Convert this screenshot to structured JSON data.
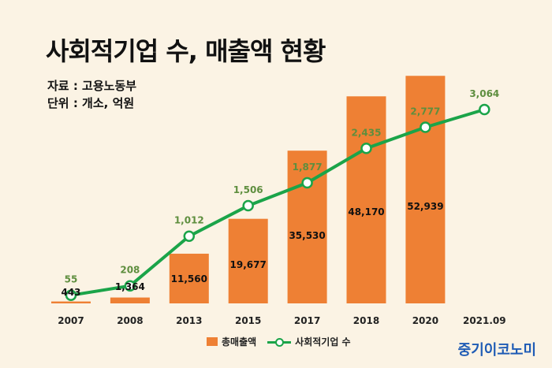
{
  "header": {
    "title": "사회적기업 수, 매출액 현황",
    "source": "자료 : 고용노동부",
    "unit": "단위 : 개소, 억원"
  },
  "brand": "중기이코노미",
  "colors": {
    "bar": "#EE8034",
    "line": "#1BA449",
    "count_label": "#5E8E3E",
    "background": "#FBF3E4"
  },
  "chart_data": {
    "type": "bar",
    "categories": [
      "2007",
      "2008",
      "2013",
      "2015",
      "2017",
      "2018",
      "2020",
      "2021.09"
    ],
    "series": [
      {
        "name": "총매출액",
        "type": "bar",
        "values": [
          443,
          1364,
          11560,
          19677,
          35530,
          48170,
          52939,
          null
        ],
        "labels": [
          "443",
          "1,364",
          "11,560",
          "19,677",
          "35,530",
          "48,170",
          "52,939",
          ""
        ]
      },
      {
        "name": "사회적기업 수",
        "type": "line",
        "values": [
          55,
          208,
          1012,
          1506,
          1877,
          2435,
          2777,
          3064
        ],
        "labels": [
          "55",
          "208",
          "1,012",
          "1,506",
          "1,877",
          "2,435",
          "2,777",
          "3,064"
        ]
      }
    ],
    "legend_position": "bottom",
    "grid": false
  }
}
